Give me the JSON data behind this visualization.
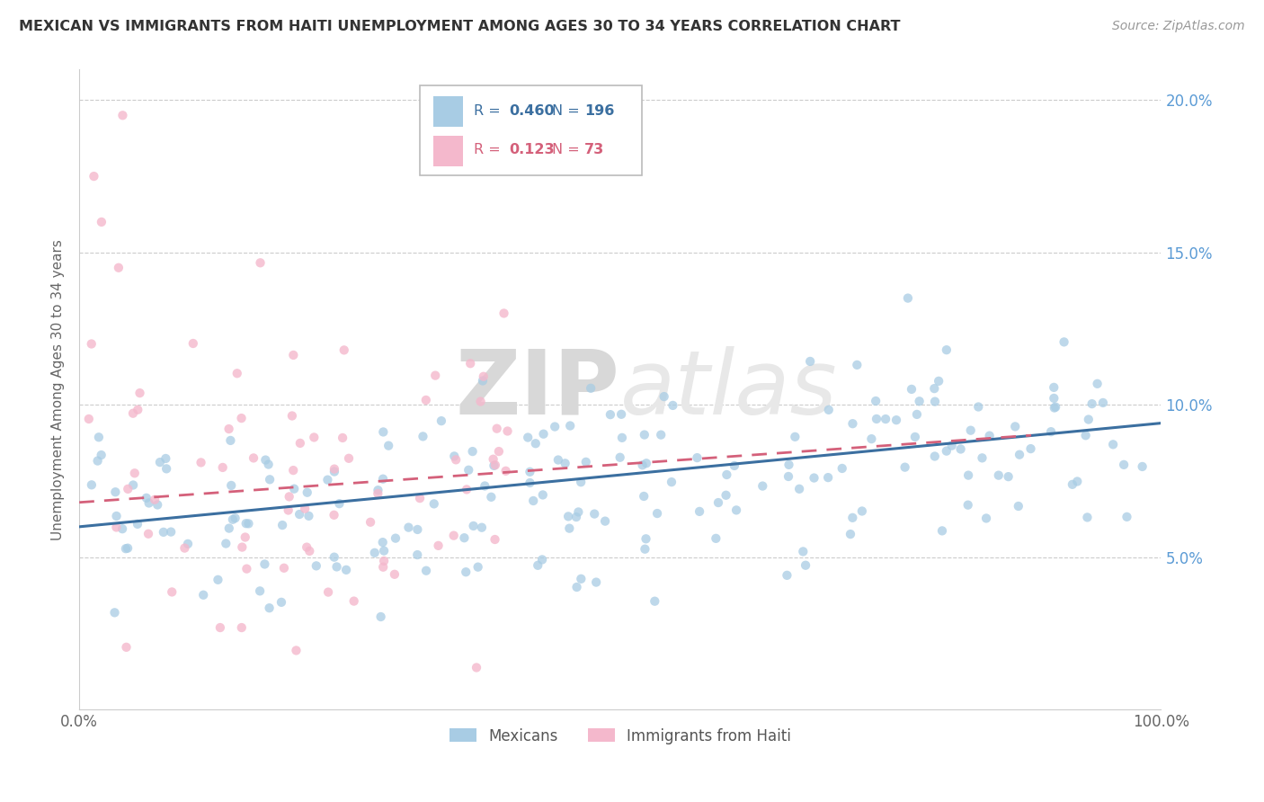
{
  "title": "MEXICAN VS IMMIGRANTS FROM HAITI UNEMPLOYMENT AMONG AGES 30 TO 34 YEARS CORRELATION CHART",
  "source": "Source: ZipAtlas.com",
  "ylabel": "Unemployment Among Ages 30 to 34 years",
  "xlim": [
    0,
    100
  ],
  "ylim": [
    0,
    21
  ],
  "xticks": [
    0,
    20,
    40,
    60,
    80,
    100
  ],
  "xtick_labels": [
    "0.0%",
    "",
    "",
    "",
    "",
    "100.0%"
  ],
  "yticks": [
    0,
    5,
    10,
    15,
    20
  ],
  "ytick_labels_right": [
    "",
    "5.0%",
    "10.0%",
    "15.0%",
    "20.0%"
  ],
  "blue_color": "#a8cce4",
  "pink_color": "#f4b8cc",
  "blue_line_color": "#3b6fa0",
  "pink_line_color": "#d4607a",
  "watermark_zip": "ZIP",
  "watermark_atlas": "atlas",
  "mexicans_R": 0.46,
  "mexicans_N": 196,
  "haiti_R": 0.123,
  "haiti_N": 73,
  "blue_slope": 0.034,
  "blue_intercept": 6.0,
  "pink_slope": 0.025,
  "pink_intercept": 6.8
}
